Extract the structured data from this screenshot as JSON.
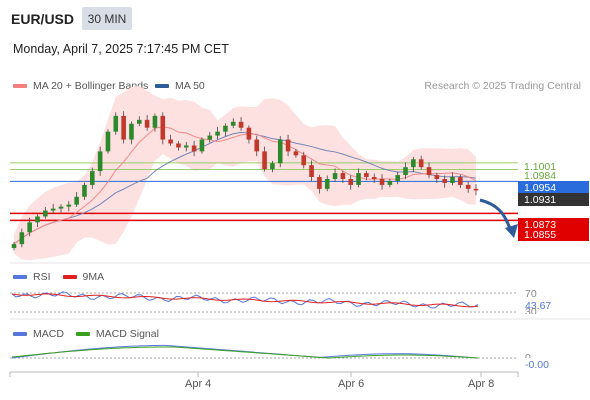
{
  "header": {
    "pair": "EUR/USD",
    "timeframe": "30 MIN",
    "datetime": "Monday, April 7, 2025 7:17:45 PM CET"
  },
  "legend": {
    "ma20": {
      "label": "MA 20 + Bollinger Bands",
      "color": "#f47f7f"
    },
    "ma50": {
      "label": "MA 50",
      "color": "#2e5b9a"
    },
    "credit": "Research © 2025 Trading Central"
  },
  "levels": {
    "r2": "1.1001",
    "r1": "1.0984",
    "current": "1.0954",
    "last_close": "1.0931",
    "s1": "1.0873",
    "s2": "1.0855"
  },
  "rsi": {
    "label": "RSI",
    "ma_label": "9MA",
    "rsi_color": "#5577dd",
    "ma_color": "#e02020",
    "level_high": "70",
    "value": "43.67",
    "level_low": "30"
  },
  "macd": {
    "label": "MACD",
    "signal_label": "MACD Signal",
    "macd_color": "#5577dd",
    "signal_color": "#3aa020",
    "zero": "0",
    "value": "-0.00"
  },
  "xaxis": {
    "labels": [
      "Apr 4",
      "Apr 6",
      "Apr 8"
    ]
  },
  "chart_data": {
    "type": "candlestick",
    "series": [
      {
        "name": "EUR/USD",
        "close": [
          1.0795,
          1.0825,
          1.085,
          1.0865,
          1.088,
          1.0885,
          1.089,
          1.0895,
          1.0915,
          1.0945,
          1.098,
          1.103,
          1.108,
          1.112,
          1.106,
          1.11,
          1.111,
          1.109,
          1.112,
          1.106,
          1.105,
          1.104,
          1.1045,
          1.103,
          1.106,
          1.107,
          1.108,
          1.1095,
          1.1105,
          1.109,
          1.106,
          1.103,
          1.0985,
          1.1,
          1.106,
          1.103,
          1.102,
          1.0995,
          1.0965,
          1.0935,
          1.096,
          1.0975,
          1.096,
          1.0945,
          1.0975,
          1.0965,
          1.096,
          1.0945,
          1.0955,
          1.097,
          1.099,
          1.101,
          1.099,
          1.097,
          1.096,
          1.095,
          1.0965,
          1.0945,
          1.0935,
          1.0931
        ]
      }
    ]
  }
}
